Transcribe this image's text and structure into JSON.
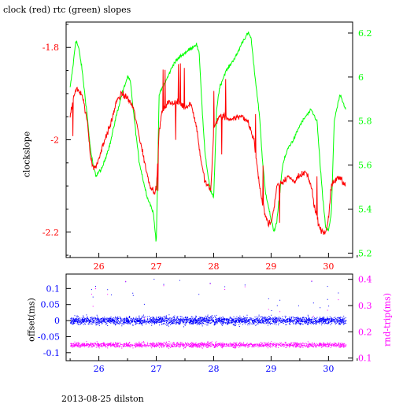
{
  "title": "clock (red) rtc (green) slopes",
  "footer": "2013-08-25 dilston",
  "colors": {
    "clock": "#ff0000",
    "rtc": "#00ff00",
    "offset": "#0000ff",
    "roundtrip": "#ff00ff",
    "frame": "#000000"
  },
  "chart_data": [
    {
      "type": "line",
      "xlim": [
        25.43,
        30.42
      ],
      "x_ticks": [
        "26",
        "27",
        "28",
        "29",
        "30"
      ],
      "y_left": {
        "label": "clockslope",
        "lim": [
          -2.255,
          -1.745
        ],
        "ticks": [
          "-1.8",
          "-2",
          "-2.2"
        ]
      },
      "y_right": {
        "label": "",
        "lim": [
          5.18,
          6.25
        ],
        "ticks": [
          "5.2",
          "5.4",
          "5.6",
          "5.8",
          "6",
          "6.2"
        ]
      },
      "series": [
        {
          "name": "clock",
          "axis": "left",
          "x": [
            25.5,
            25.55,
            25.6,
            25.7,
            25.8,
            25.85,
            25.9,
            25.95,
            26.0,
            26.05,
            26.1,
            26.2,
            26.3,
            26.4,
            26.5,
            26.6,
            26.7,
            26.75,
            26.8,
            26.85,
            26.9,
            26.95,
            27.0,
            27.05,
            27.1,
            27.2,
            27.3,
            27.4,
            27.5,
            27.6,
            27.7,
            27.75,
            27.8,
            27.85,
            27.9,
            27.95,
            28.0,
            28.05,
            28.1,
            28.2,
            28.3,
            28.4,
            28.5,
            28.6,
            28.7,
            28.75,
            28.8,
            28.85,
            28.9,
            28.95,
            29.0,
            29.05,
            29.1,
            29.2,
            29.3,
            29.4,
            29.5,
            29.6,
            29.7,
            29.75,
            29.8,
            29.85,
            29.9,
            29.95,
            30.0,
            30.05,
            30.1,
            30.2,
            30.3
          ],
          "y": [
            -1.95,
            -1.91,
            -1.89,
            -1.9,
            -1.96,
            -2.03,
            -2.06,
            -2.06,
            -2.04,
            -2.02,
            -2.0,
            -1.97,
            -1.92,
            -1.9,
            -1.91,
            -1.93,
            -1.99,
            -2.02,
            -2.05,
            -2.08,
            -2.1,
            -2.11,
            -2.11,
            -1.98,
            -1.94,
            -1.92,
            -1.92,
            -1.92,
            -1.93,
            -1.92,
            -1.97,
            -2.02,
            -2.06,
            -2.09,
            -2.1,
            -2.11,
            -1.98,
            -1.96,
            -1.95,
            -1.95,
            -1.96,
            -1.95,
            -1.95,
            -1.96,
            -2.0,
            -2.05,
            -2.1,
            -2.14,
            -2.16,
            -2.18,
            -2.18,
            -2.15,
            -2.1,
            -2.09,
            -2.08,
            -2.09,
            -2.08,
            -2.07,
            -2.1,
            -2.14,
            -2.17,
            -2.19,
            -2.2,
            -2.2,
            -2.17,
            -2.1,
            -2.09,
            -2.08,
            -2.1
          ]
        },
        {
          "name": "rtc",
          "axis": "right",
          "x": [
            25.5,
            25.55,
            25.6,
            25.65,
            25.7,
            25.8,
            25.85,
            25.9,
            25.95,
            26.0,
            26.05,
            26.1,
            26.2,
            26.3,
            26.4,
            26.5,
            26.55,
            26.6,
            26.7,
            26.8,
            26.85,
            26.9,
            26.95,
            27.0,
            27.05,
            27.1,
            27.2,
            27.3,
            27.4,
            27.5,
            27.6,
            27.7,
            27.75,
            27.8,
            27.85,
            27.9,
            27.95,
            28.0,
            28.05,
            28.1,
            28.2,
            28.3,
            28.4,
            28.5,
            28.6,
            28.65,
            28.7,
            28.8,
            28.85,
            28.9,
            28.95,
            29.0,
            29.05,
            29.1,
            29.2,
            29.3,
            29.4,
            29.5,
            29.6,
            29.7,
            29.8,
            29.85,
            29.9,
            29.95,
            30.0,
            30.05,
            30.1,
            30.2,
            30.3
          ],
          "y": [
            5.95,
            6.05,
            6.17,
            6.13,
            6.05,
            5.82,
            5.68,
            5.6,
            5.55,
            5.57,
            5.58,
            5.62,
            5.7,
            5.82,
            5.92,
            6.0,
            5.98,
            5.85,
            5.62,
            5.5,
            5.45,
            5.42,
            5.38,
            5.25,
            5.92,
            5.95,
            6.0,
            6.06,
            6.09,
            6.11,
            6.13,
            6.15,
            6.1,
            5.85,
            5.65,
            5.55,
            5.48,
            5.45,
            5.85,
            5.95,
            6.02,
            6.06,
            6.1,
            6.16,
            6.2,
            6.18,
            6.05,
            5.82,
            5.62,
            5.48,
            5.42,
            5.35,
            5.3,
            5.34,
            5.6,
            5.68,
            5.72,
            5.78,
            5.82,
            5.85,
            5.8,
            5.62,
            5.45,
            5.32,
            5.3,
            5.38,
            5.8,
            5.92,
            5.85
          ]
        }
      ]
    },
    {
      "type": "scatter",
      "xlim": [
        25.43,
        30.42
      ],
      "x_ticks": [
        "26",
        "27",
        "28",
        "29",
        "30"
      ],
      "y_left": {
        "label": "offset(ms)",
        "lim": [
          -0.125,
          0.145
        ],
        "ticks": [
          "0.1",
          "0.05",
          "0",
          "-0.05",
          "-0.1"
        ]
      },
      "y_right": {
        "label": "rnd-trip(ms)",
        "lim": [
          0.09,
          0.42
        ],
        "ticks": [
          "0.4",
          "0.3",
          "0.2",
          "0.1"
        ]
      },
      "series": [
        {
          "name": "offset",
          "axis": "left",
          "x_range": [
            25.5,
            30.3
          ],
          "y_center": 0.0,
          "y_spread": 0.02,
          "outliers_to": 0.13
        },
        {
          "name": "rnd-trip",
          "axis": "right",
          "x_range": [
            25.5,
            30.3
          ],
          "y_center": 0.15,
          "y_spread": 0.015,
          "outliers_to": 0.41
        }
      ]
    }
  ]
}
